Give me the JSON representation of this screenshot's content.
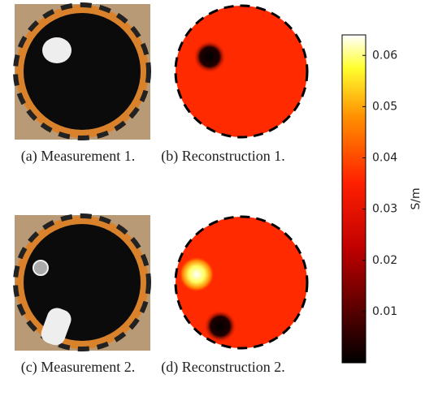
{
  "panels": [
    {
      "caption": "(a) Measurement 1."
    },
    {
      "caption": "(b) Reconstruction 1."
    },
    {
      "caption": "(c) Measurement 2."
    },
    {
      "caption": "(d) Reconstruction 2."
    }
  ],
  "colorbar": {
    "label": "S/m",
    "lim": [
      0,
      0.064
    ],
    "ticks": [
      0.01,
      0.02,
      0.03,
      0.04,
      0.05,
      0.06
    ]
  }
}
